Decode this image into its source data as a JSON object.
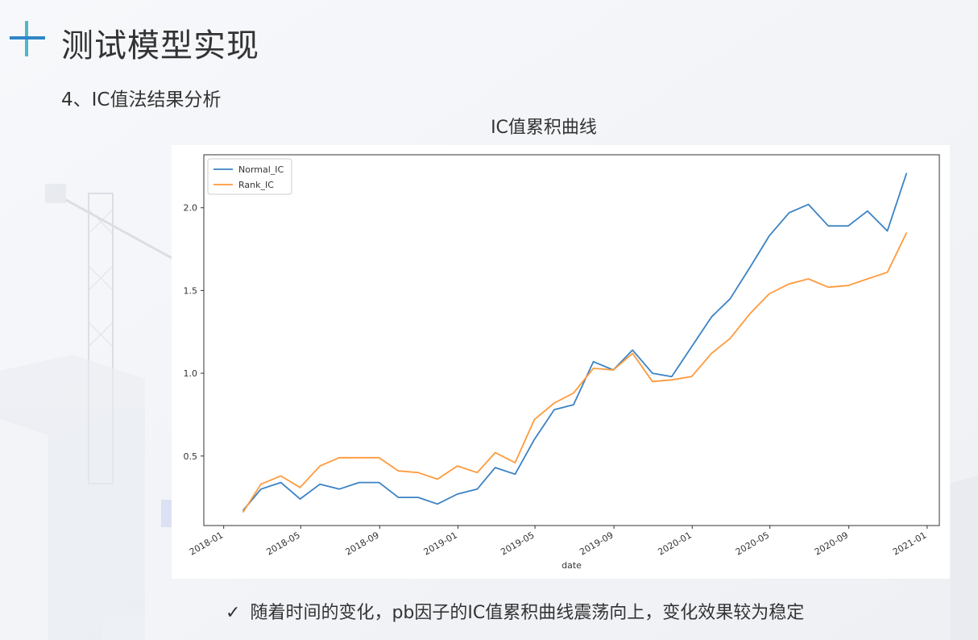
{
  "slide": {
    "title": "测试模型实现",
    "subtitle": "4、IC值法结果分析",
    "conclusion": "随着时间的变化，pb因子的IC值累积曲线震荡向上，变化效果较为稳定",
    "check_glyph": "✓"
  },
  "colors": {
    "accent_blue": "#2f87c8",
    "accent_teal": "#4bb8c4",
    "normal_ic": "#3b82c4",
    "rank_ic": "#ff9a3c"
  },
  "chart_data": {
    "type": "line",
    "title": "IC值累积曲线",
    "xlabel": "date",
    "ylabel": "",
    "xlim": [
      "2017-12-01",
      "2021-01-20"
    ],
    "ylim": [
      0.08,
      2.32
    ],
    "grid": false,
    "legend_position": "top-left",
    "x_ticks": [
      "2018-01",
      "2018-05",
      "2018-09",
      "2019-01",
      "2019-05",
      "2019-09",
      "2020-01",
      "2020-05",
      "2020-09",
      "2021-01"
    ],
    "y_ticks": [
      "0.5",
      "1.0",
      "1.5",
      "2.0"
    ],
    "x": [
      "2018-01-31",
      "2018-02-28",
      "2018-03-31",
      "2018-04-30",
      "2018-05-31",
      "2018-06-30",
      "2018-07-31",
      "2018-08-31",
      "2018-09-30",
      "2018-10-31",
      "2018-11-30",
      "2018-12-31",
      "2019-01-31",
      "2019-02-28",
      "2019-03-31",
      "2019-04-30",
      "2019-05-31",
      "2019-06-30",
      "2019-07-31",
      "2019-08-31",
      "2019-09-30",
      "2019-10-31",
      "2019-11-30",
      "2019-12-31",
      "2020-01-31",
      "2020-02-29",
      "2020-03-31",
      "2020-04-30",
      "2020-05-31",
      "2020-06-30",
      "2020-07-31",
      "2020-08-31",
      "2020-09-30",
      "2020-10-31",
      "2020-11-30"
    ],
    "series": [
      {
        "name": "Normal_IC",
        "color": "#3b82c4",
        "values": [
          0.17,
          0.3,
          0.34,
          0.24,
          0.33,
          0.3,
          0.34,
          0.34,
          0.25,
          0.25,
          0.21,
          0.27,
          0.3,
          0.43,
          0.39,
          0.6,
          0.78,
          0.81,
          1.07,
          1.02,
          1.14,
          1.0,
          0.98,
          1.16,
          1.34,
          1.45,
          1.64,
          1.83,
          1.97,
          2.02,
          1.89,
          1.89,
          1.98,
          1.86,
          2.21
        ]
      },
      {
        "name": "Rank_IC",
        "color": "#ff9a3c",
        "values": [
          0.16,
          0.33,
          0.38,
          0.31,
          0.44,
          0.49,
          0.49,
          0.49,
          0.41,
          0.4,
          0.36,
          0.44,
          0.4,
          0.52,
          0.46,
          0.72,
          0.82,
          0.88,
          1.03,
          1.02,
          1.12,
          0.95,
          0.96,
          0.98,
          1.12,
          1.21,
          1.36,
          1.48,
          1.54,
          1.57,
          1.52,
          1.53,
          1.57,
          1.61,
          1.85
        ]
      }
    ]
  }
}
